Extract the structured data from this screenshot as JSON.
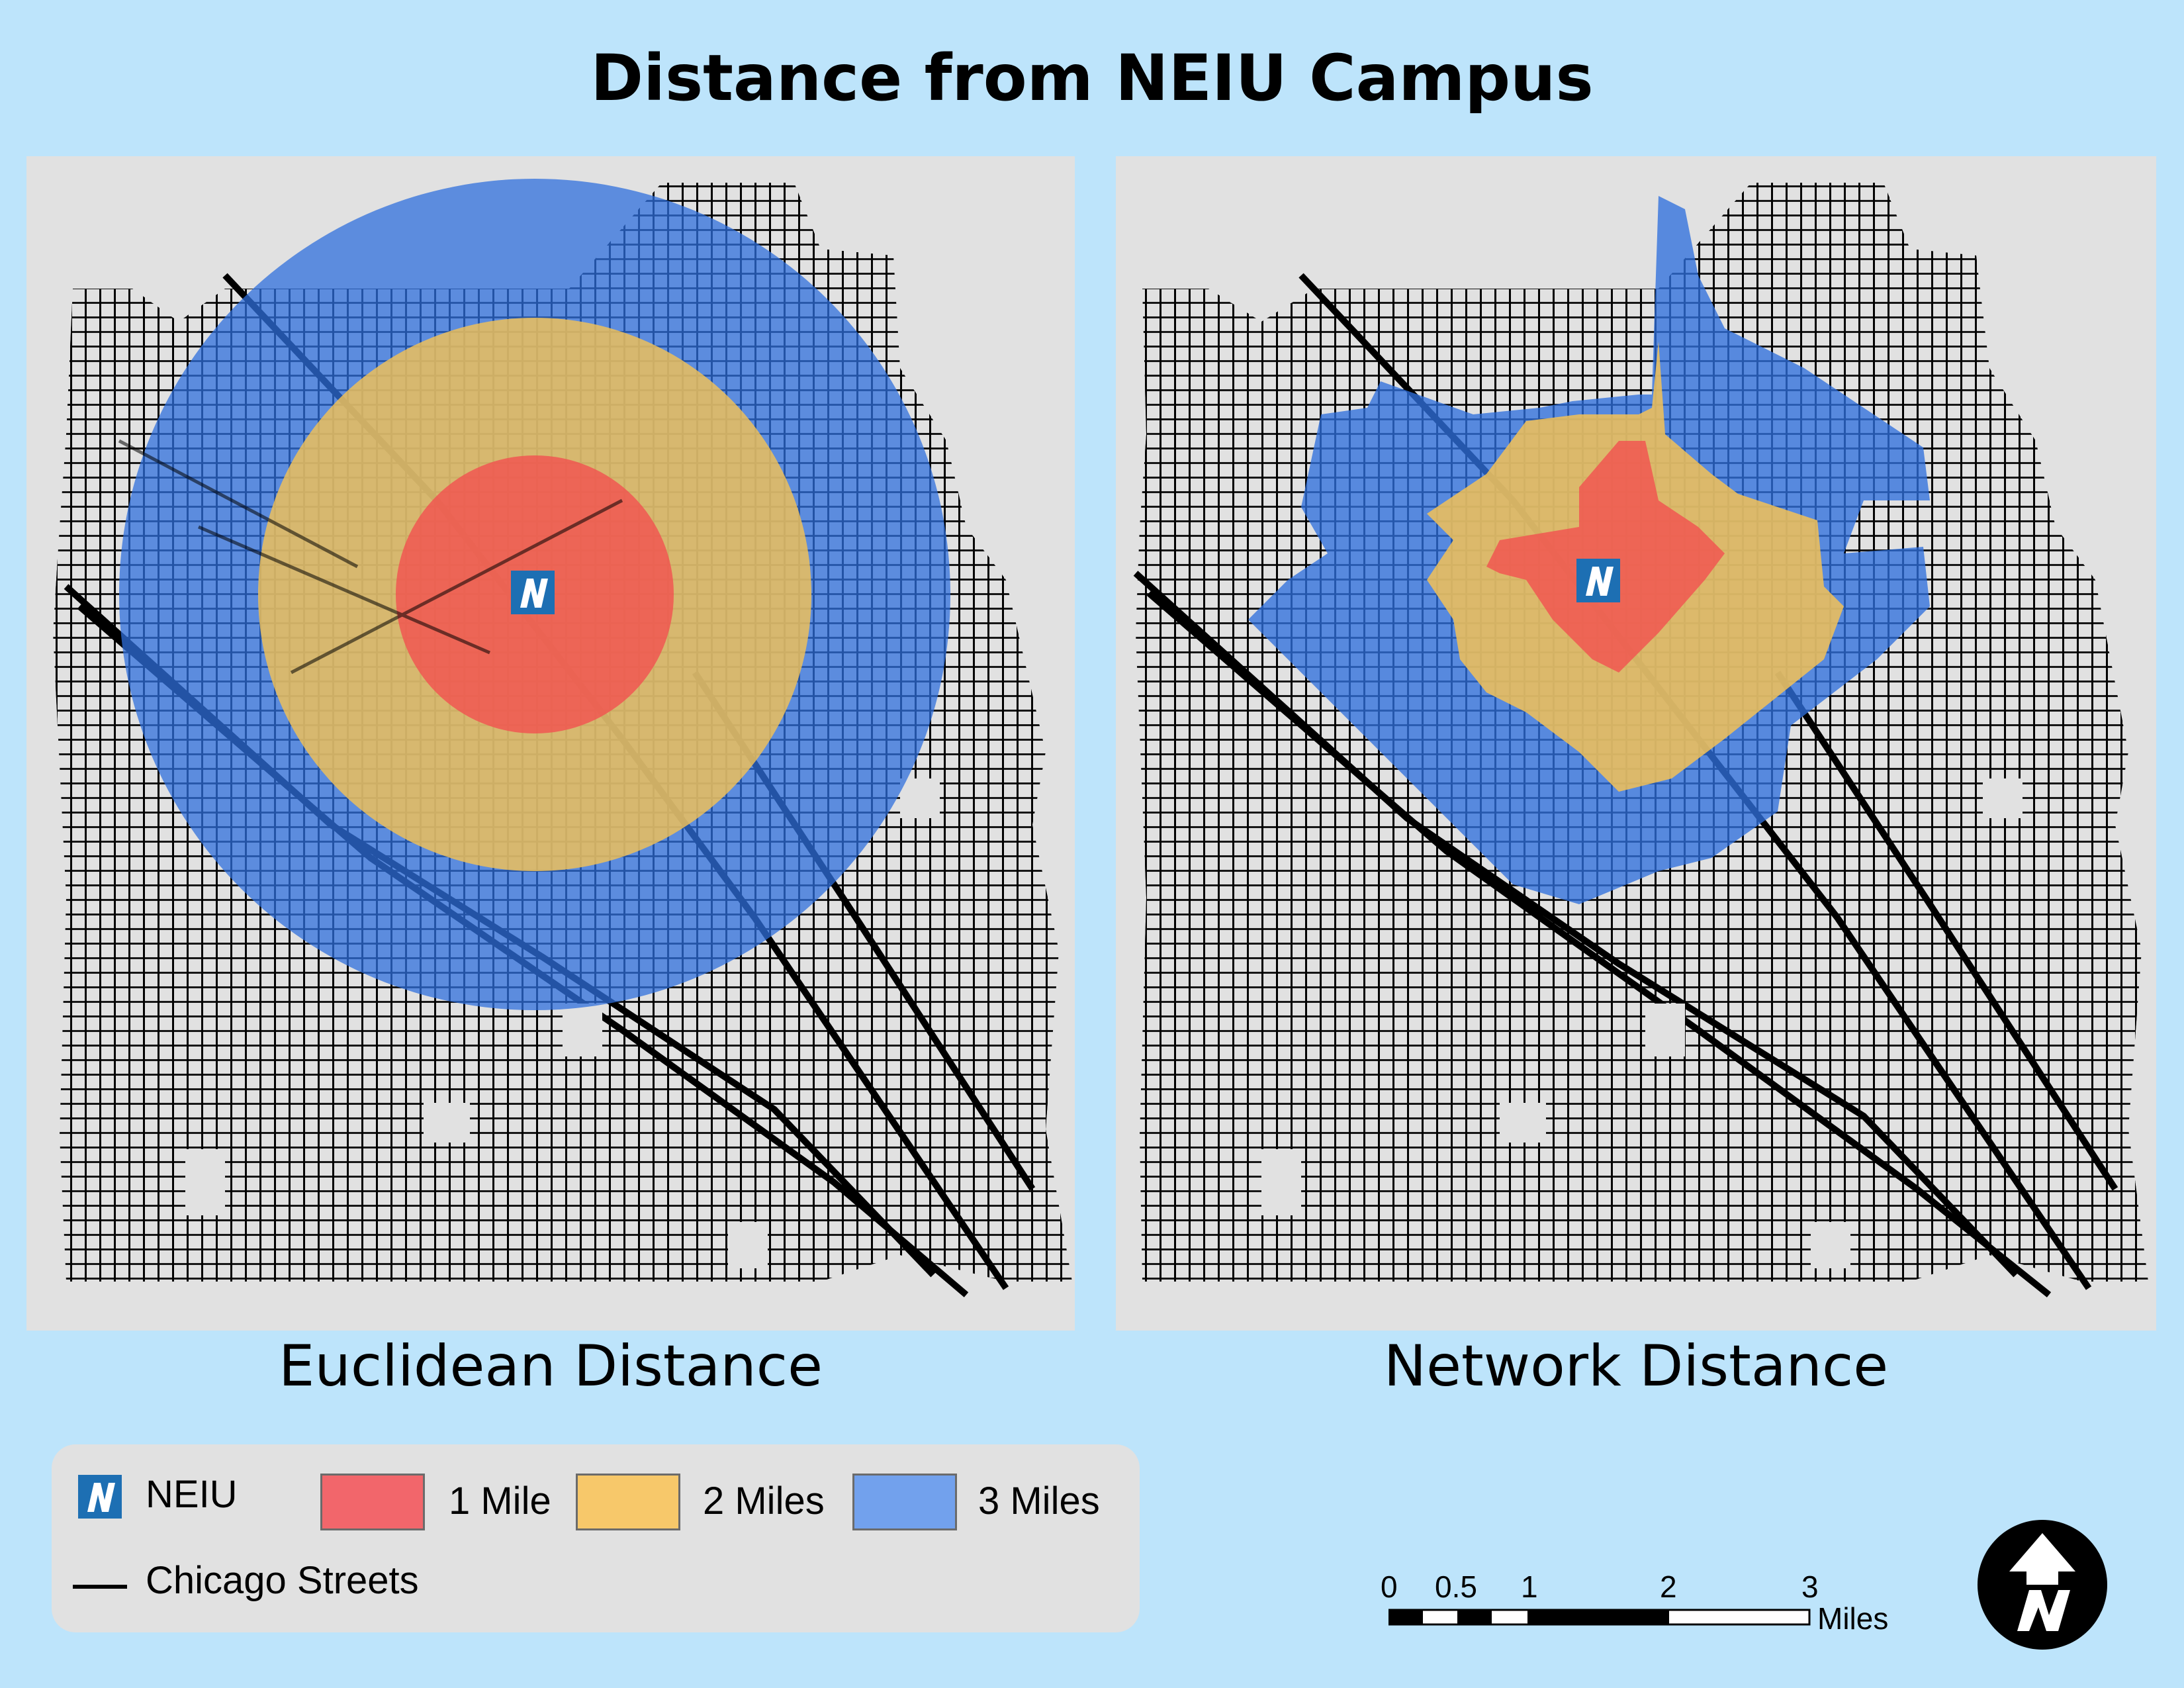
{
  "title": "Distance from NEIU Campus",
  "panels": {
    "left_caption": "Euclidean Distance",
    "right_caption": "Network Distance"
  },
  "legend": {
    "neiu_label": "NEIU",
    "streets_label": "Chicago Streets",
    "zones": [
      {
        "label": "1 Mile",
        "color": "#f2666b"
      },
      {
        "label": "2 Miles",
        "color": "#f7c86a"
      },
      {
        "label": "3 Miles",
        "color": "#72a1ed"
      }
    ]
  },
  "scale_bar": {
    "ticks": [
      "0",
      "0.5",
      "1",
      "2",
      "3"
    ],
    "unit": "Miles"
  },
  "colors": {
    "background": "#bde4fb",
    "panel": "#e1e1e1",
    "streets": "#000000",
    "zone_1": "#f2666b",
    "zone_2": "#f7c86a",
    "zone_3": "#72a1ed",
    "logo": "#1d6fb3"
  },
  "icons": {
    "campus_marker": "neiu-logo-icon",
    "north_arrow": "north-arrow-icon"
  }
}
